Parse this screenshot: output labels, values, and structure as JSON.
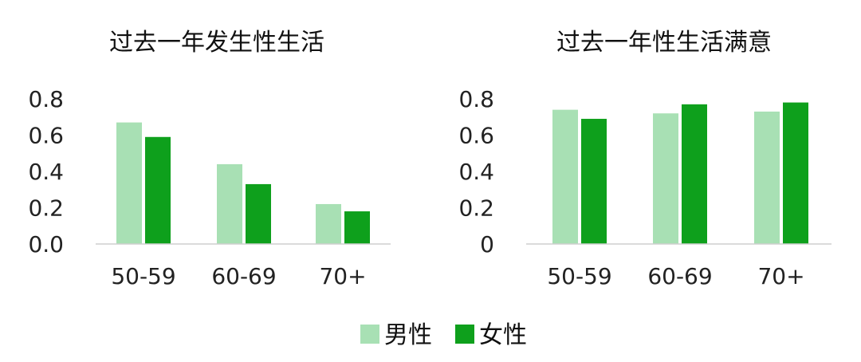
{
  "colors": {
    "male": "#a8e0b4",
    "female": "#0ea01c"
  },
  "legend": [
    {
      "label": "男性",
      "color": "#a8e0b4"
    },
    {
      "label": "女性",
      "color": "#0ea01c"
    }
  ],
  "chart_data": [
    {
      "type": "bar",
      "title": "过去一年发生性生活",
      "categories": [
        "50-59",
        "60-69",
        "70+"
      ],
      "series": [
        {
          "name": "男性",
          "values": [
            0.67,
            0.44,
            0.22
          ]
        },
        {
          "name": "女性",
          "values": [
            0.59,
            0.33,
            0.18
          ]
        }
      ],
      "ylim": [
        0,
        0.8
      ],
      "yticks": [
        "0.0",
        "0.2",
        "0.4",
        "0.6",
        "0.8"
      ],
      "grid": false,
      "xlabel": "",
      "ylabel": ""
    },
    {
      "type": "bar",
      "title": "过去一年性生活满意",
      "categories": [
        "50-59",
        "60-69",
        "70+"
      ],
      "series": [
        {
          "name": "男性",
          "values": [
            0.74,
            0.72,
            0.73
          ]
        },
        {
          "name": "女性",
          "values": [
            0.69,
            0.77,
            0.78
          ]
        }
      ],
      "ylim": [
        0,
        0.8
      ],
      "yticks": [
        "0",
        "0.2",
        "0.4",
        "0.6",
        "0.8"
      ],
      "grid": false,
      "xlabel": "",
      "ylabel": ""
    }
  ]
}
